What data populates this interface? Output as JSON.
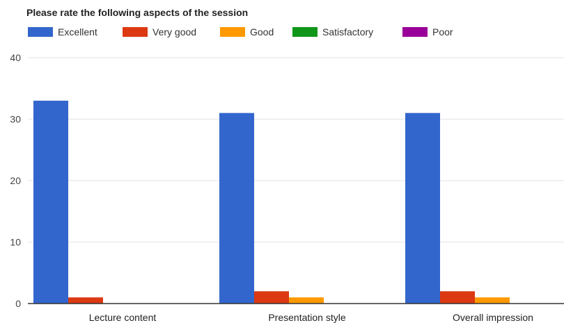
{
  "chart_data": {
    "type": "bar",
    "title": "Please rate the following aspects of the session",
    "categories": [
      "Lecture content",
      "Presentation style",
      "Overall impression"
    ],
    "series": [
      {
        "name": "Excellent",
        "color": "#3366cc",
        "values": [
          33,
          31,
          31
        ]
      },
      {
        "name": "Very good",
        "color": "#dc3912",
        "values": [
          1,
          2,
          2
        ]
      },
      {
        "name": "Good",
        "color": "#ff9900",
        "values": [
          0,
          1,
          1
        ]
      },
      {
        "name": "Satisfactory",
        "color": "#109618",
        "values": [
          0,
          0,
          0
        ]
      },
      {
        "name": "Poor",
        "color": "#990099",
        "values": [
          0,
          0,
          0
        ]
      }
    ],
    "ylim": [
      0,
      40
    ],
    "yticks": [
      0,
      10,
      20,
      30,
      40
    ],
    "grid": true,
    "legend": "top-left"
  }
}
